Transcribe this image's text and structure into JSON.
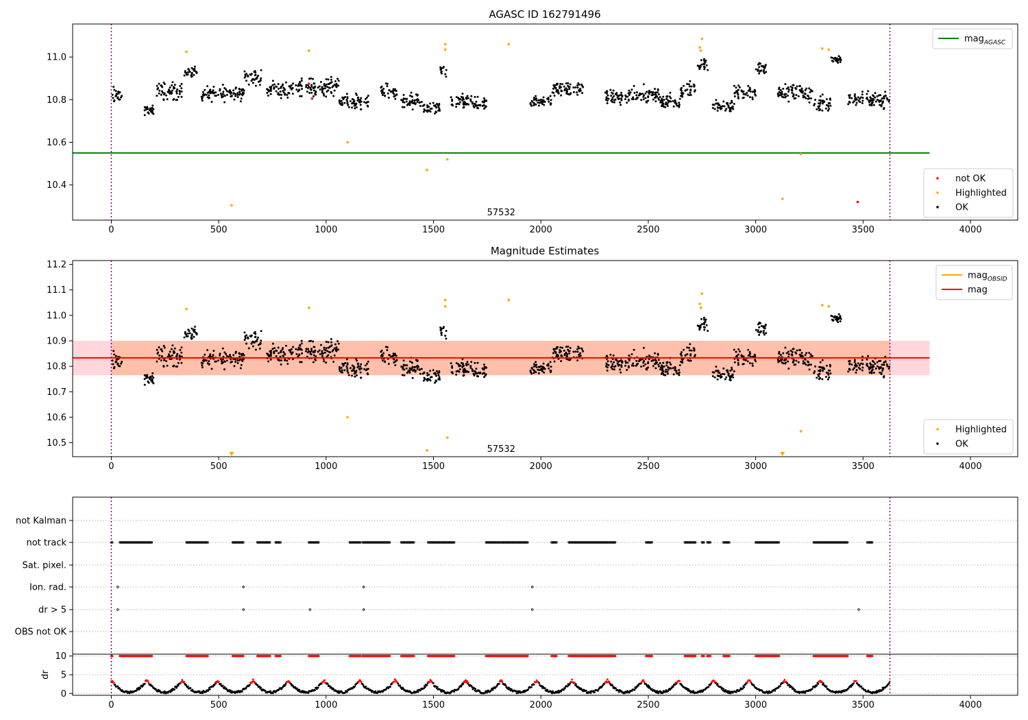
{
  "chart_data": [
    {
      "type": "scatter",
      "title": "AGASC ID 162791496",
      "xlim": [
        -180,
        4220
      ],
      "ylim": [
        10.235,
        11.155
      ],
      "xticks": [
        0,
        500,
        1000,
        1500,
        2000,
        2500,
        3000,
        3500,
        4000
      ],
      "xtick_labels": [
        "0",
        "500",
        "1000",
        "1500",
        "2000",
        "2500",
        "3000",
        "3500",
        "4000"
      ],
      "yticks": [
        10.4,
        10.6,
        10.8,
        11.0
      ],
      "ytick_labels": [
        "10.4",
        "10.6",
        "10.8",
        "11.0"
      ],
      "vlines": [
        0,
        3625
      ],
      "vline_color": "#800080",
      "hline": {
        "name": "mag",
        "subscript": "AGASC",
        "y": 10.55,
        "x": [
          -180,
          3810
        ],
        "color": "#008000"
      },
      "annotation": {
        "text": "57532",
        "x": 1815,
        "y": 10.27
      },
      "legend_top": [
        {
          "name": "mag",
          "subscript": "AGASC",
          "color": "#008000",
          "kind": "line"
        }
      ],
      "legend_bottom": [
        {
          "name": "not OK",
          "color": "#ff0000",
          "kind": "dot"
        },
        {
          "name": "Highlighted",
          "color": "#ffa500",
          "kind": "dot"
        },
        {
          "name": "OK",
          "color": "#000000",
          "kind": "dot"
        }
      ],
      "highlighted_points": [
        [
          350,
          11.025
        ],
        [
          920,
          11.03
        ],
        [
          1555,
          11.06
        ],
        [
          1555,
          11.035
        ],
        [
          1850,
          11.06
        ],
        [
          2740,
          11.045
        ],
        [
          2745,
          11.03
        ],
        [
          2750,
          11.085
        ],
        [
          3310,
          11.04
        ],
        [
          3340,
          11.035
        ],
        [
          1100,
          10.6
        ],
        [
          1470,
          10.47
        ],
        [
          1565,
          10.52
        ],
        [
          3210,
          10.545
        ],
        [
          560,
          10.305
        ],
        [
          3125,
          10.335
        ]
      ],
      "notok_points": [
        [
          920,
          10.875
        ],
        [
          935,
          10.805
        ],
        [
          3475,
          10.32
        ]
      ],
      "ok_segments": [
        [
          0,
          50,
          10.82,
          0.06
        ],
        [
          150,
          210,
          10.75,
          0.03
        ],
        [
          210,
          330,
          10.84,
          0.06
        ],
        [
          340,
          400,
          10.93,
          0.04
        ],
        [
          420,
          620,
          10.83,
          0.05
        ],
        [
          620,
          700,
          10.9,
          0.06
        ],
        [
          720,
          850,
          10.85,
          0.05
        ],
        [
          850,
          1060,
          10.86,
          0.06
        ],
        [
          1060,
          1200,
          10.79,
          0.05
        ],
        [
          1250,
          1330,
          10.84,
          0.05
        ],
        [
          1350,
          1450,
          10.79,
          0.05
        ],
        [
          1450,
          1530,
          10.76,
          0.04
        ],
        [
          1530,
          1560,
          10.93,
          0.05
        ],
        [
          1580,
          1650,
          10.79,
          0.05
        ],
        [
          1650,
          1750,
          10.78,
          0.05
        ],
        [
          1950,
          2050,
          10.79,
          0.04
        ],
        [
          2050,
          2200,
          10.85,
          0.05
        ],
        [
          2300,
          2400,
          10.81,
          0.05
        ],
        [
          2400,
          2550,
          10.82,
          0.06
        ],
        [
          2550,
          2650,
          10.79,
          0.05
        ],
        [
          2650,
          2720,
          10.85,
          0.05
        ],
        [
          2730,
          2780,
          10.96,
          0.04
        ],
        [
          2800,
          2900,
          10.77,
          0.04
        ],
        [
          2900,
          3000,
          10.84,
          0.06
        ],
        [
          3000,
          3050,
          10.95,
          0.05
        ],
        [
          3100,
          3270,
          10.83,
          0.06
        ],
        [
          3270,
          3350,
          10.78,
          0.06
        ],
        [
          3350,
          3400,
          10.99,
          0.03
        ],
        [
          3430,
          3625,
          10.8,
          0.05
        ]
      ]
    },
    {
      "type": "scatter",
      "title": "Magnitude Estimates",
      "xlim": [
        -180,
        4220
      ],
      "ylim": [
        10.445,
        11.215
      ],
      "xticks": [
        0,
        500,
        1000,
        1500,
        2000,
        2500,
        3000,
        3500,
        4000
      ],
      "xtick_labels": [
        "0",
        "500",
        "1000",
        "1500",
        "2000",
        "2500",
        "3000",
        "3500",
        "4000"
      ],
      "yticks": [
        10.5,
        10.6,
        10.7,
        10.8,
        10.9,
        11.0,
        11.1,
        11.2
      ],
      "ytick_labels": [
        "10.5",
        "10.6",
        "10.7",
        "10.8",
        "10.9",
        "11.0",
        "11.1",
        "11.2"
      ],
      "vlines": [
        0,
        3625
      ],
      "band": {
        "y0": 10.765,
        "y1": 10.9,
        "x": [
          -180,
          3810
        ]
      },
      "band_inner": {
        "y0": 10.765,
        "y1": 10.9,
        "x": [
          0,
          3625
        ],
        "color": "#ffb08a"
      },
      "band_outer_color": "#ffd6dc",
      "hline_mag": {
        "y": 10.833,
        "color": "#ff0000"
      },
      "hline_obsid": {
        "y": 10.833,
        "color": "#ffa500"
      },
      "annotation": {
        "text": "57532",
        "x": 1815,
        "y": 10.475
      },
      "legend_top": [
        {
          "name": "mag",
          "subscript": "OBSID",
          "color": "#ffa500",
          "kind": "line"
        },
        {
          "name": "mag",
          "subscript": "",
          "color": "#ff0000",
          "kind": "line"
        }
      ],
      "legend_bottom": [
        {
          "name": "Highlighted",
          "color": "#ffa500",
          "kind": "dot"
        },
        {
          "name": "OK",
          "color": "#000000",
          "kind": "dot"
        }
      ],
      "highlighted_points": [
        [
          350,
          11.025
        ],
        [
          920,
          11.03
        ],
        [
          1555,
          11.06
        ],
        [
          1555,
          11.035
        ],
        [
          1850,
          11.06
        ],
        [
          2740,
          11.045
        ],
        [
          2745,
          11.03
        ],
        [
          2750,
          11.085
        ],
        [
          3310,
          11.04
        ],
        [
          3340,
          11.035
        ],
        [
          1100,
          10.6
        ],
        [
          1470,
          10.47
        ],
        [
          1565,
          10.52
        ],
        [
          3210,
          10.545
        ]
      ],
      "clipped_points": [
        560,
        3125
      ]
    },
    {
      "type": "scatter",
      "title": "",
      "xlim": [
        -180,
        4220
      ],
      "xticks": [
        0,
        500,
        1000,
        1500,
        2000,
        2500,
        3000,
        3500,
        4000
      ],
      "xtick_labels": [
        "0",
        "500",
        "1000",
        "1500",
        "2000",
        "2500",
        "3000",
        "3500",
        "4000"
      ],
      "categories": [
        "not Kalman",
        "not track",
        "Sat. pixel.",
        "Ion. rad.",
        "dr > 5",
        "OBS not OK"
      ],
      "not_track_ranges": [
        [
          0,
          8
        ],
        [
          40,
          190
        ],
        [
          350,
          450
        ],
        [
          565,
          615
        ],
        [
          680,
          740
        ],
        [
          765,
          790
        ],
        [
          920,
          965
        ],
        [
          1110,
          1160
        ],
        [
          1170,
          1300
        ],
        [
          1350,
          1410
        ],
        [
          1475,
          1600
        ],
        [
          1745,
          1940
        ],
        [
          2050,
          2075
        ],
        [
          2130,
          2350
        ],
        [
          2490,
          2520
        ],
        [
          2670,
          2720
        ],
        [
          2750,
          2760
        ],
        [
          2775,
          2790
        ],
        [
          2850,
          2880
        ],
        [
          3000,
          3110
        ],
        [
          3270,
          3430
        ],
        [
          3520,
          3545
        ]
      ],
      "ion_rad_points": [
        30,
        615,
        1175,
        1960
      ],
      "dr5_points": [
        30,
        615,
        925,
        1175,
        1960,
        3480
      ],
      "vlines": [
        0,
        3625
      ]
    },
    {
      "type": "scatter",
      "title": "",
      "ylabel": "dr",
      "xlim": [
        -180,
        4220
      ],
      "ylim": [
        -0.5,
        10.5
      ],
      "yticks": [
        0,
        5,
        10
      ],
      "ytick_labels": [
        "0",
        "5",
        "10"
      ],
      "xticks": [
        0,
        500,
        1000,
        1500,
        2000,
        2500,
        3000,
        3500,
        4000
      ],
      "xtick_labels": [
        "0",
        "500",
        "1000",
        "1500",
        "2000",
        "2500",
        "3000",
        "3500",
        "4000"
      ],
      "high_dr_value": 10,
      "vlines": [
        0,
        3625
      ]
    }
  ]
}
